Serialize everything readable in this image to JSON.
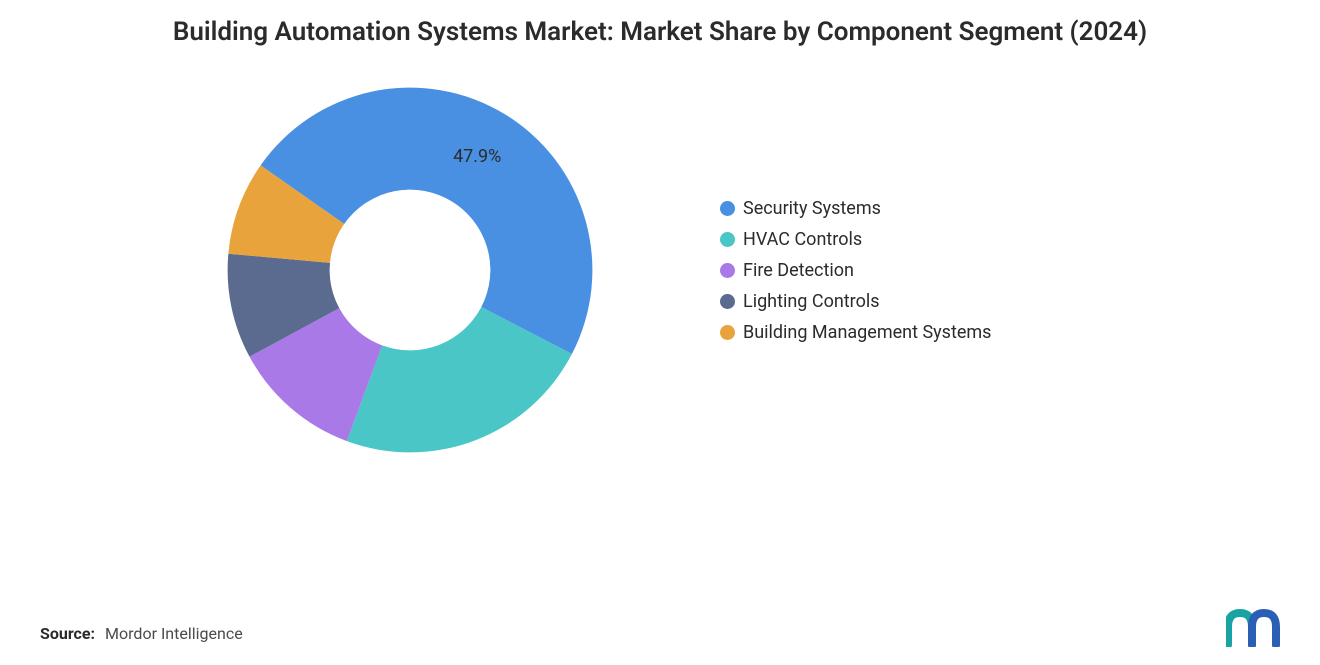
{
  "chart": {
    "type": "donut",
    "title": "Building Automation Systems Market: Market Share by Component Segment (2024)",
    "background_color": "#ffffff",
    "title_color": "#2b2b2b",
    "title_fontsize": 26,
    "inner_radius_ratio": 0.44,
    "slices": [
      {
        "label": "Security Systems",
        "value": 47.9,
        "color": "#4a90e2",
        "show_label": true,
        "label_text": "47.9%"
      },
      {
        "label": "HVAC Controls",
        "value": 23.0,
        "color": "#4bc6c6",
        "show_label": false,
        "label_text": ""
      },
      {
        "label": "Fire Detection",
        "value": 11.5,
        "color": "#a979e8",
        "show_label": false,
        "label_text": ""
      },
      {
        "label": "Lighting Controls",
        "value": 9.3,
        "color": "#5b6b8f",
        "show_label": false,
        "label_text": ""
      },
      {
        "label": "Building Management Systems",
        "value": 8.3,
        "color": "#e8a33d",
        "show_label": false,
        "label_text": ""
      }
    ],
    "start_angle_deg": -55,
    "label_fontsize": 18,
    "label_color": "#2b2b2b",
    "legend_fontsize": 18,
    "legend_color": "#2b2b2b"
  },
  "source": {
    "prefix": "Source:",
    "text": "Mordor Intelligence"
  },
  "logo": {
    "bar1_color": "#1aa3a3",
    "bar2_color": "#2b5fb5"
  }
}
